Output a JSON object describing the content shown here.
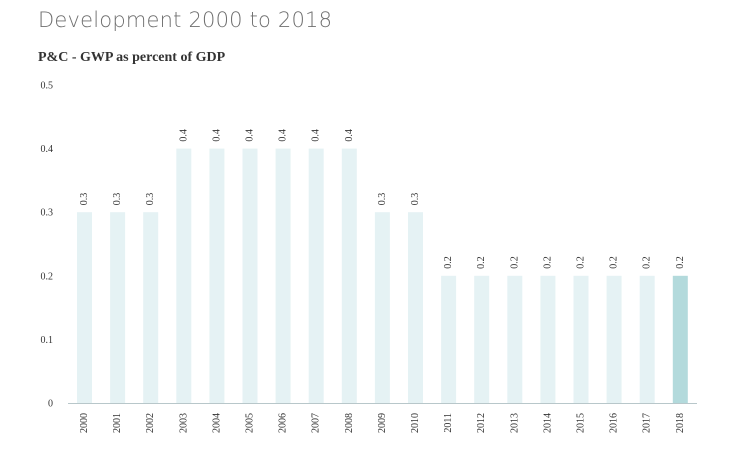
{
  "page": {
    "title": "Development 2000 to 2018"
  },
  "chart_data": {
    "type": "bar",
    "title": "P&C - GWP as percent of GDP",
    "xlabel": "",
    "ylabel": "",
    "ylim": [
      0,
      0.5
    ],
    "yticks": [
      "0",
      "0.1",
      "0.2",
      "0.3",
      "0.4",
      "0.5"
    ],
    "grid": false,
    "categories": [
      "2000",
      "2001",
      "2002",
      "2003",
      "2004",
      "2005",
      "2006",
      "2007",
      "2008",
      "2009",
      "2010",
      "2011",
      "2012",
      "2013",
      "2014",
      "2015",
      "2016",
      "2017",
      "2018"
    ],
    "values": [
      0.3,
      0.3,
      0.3,
      0.4,
      0.4,
      0.4,
      0.4,
      0.4,
      0.4,
      0.3,
      0.3,
      0.2,
      0.2,
      0.2,
      0.2,
      0.2,
      0.2,
      0.2,
      0.2
    ],
    "data_labels": [
      "0.3",
      "0.3",
      "0.3",
      "0.4",
      "0.4",
      "0.4",
      "0.4",
      "0.4",
      "0.4",
      "0.3",
      "0.3",
      "0.2",
      "0.2",
      "0.2",
      "0.2",
      "0.2",
      "0.2",
      "0.2",
      "0.2"
    ],
    "highlight_category": "2018",
    "colors": {
      "bar": "#e5f2f4",
      "highlight": "#b3dadc",
      "axis": "#b8c7ca",
      "text": "#333333"
    }
  }
}
